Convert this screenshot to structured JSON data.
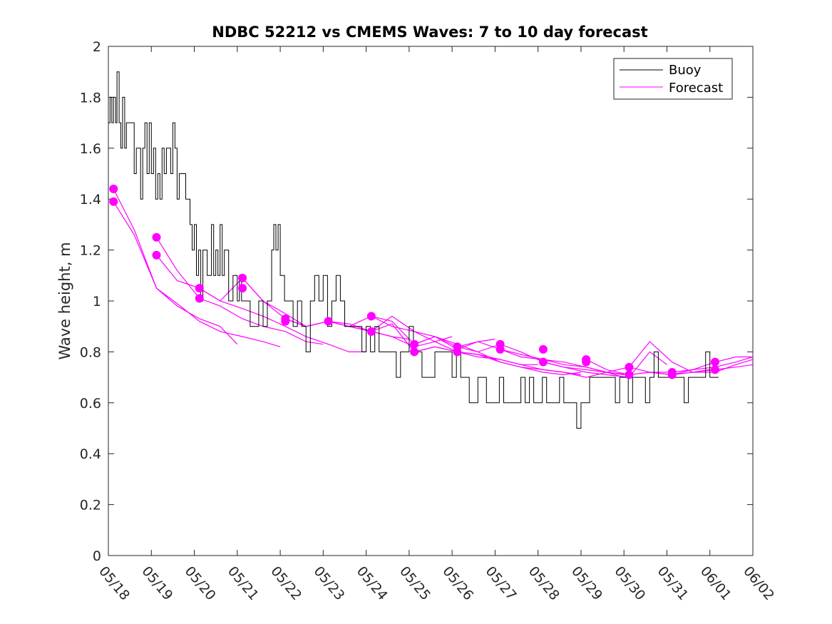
{
  "chart_data": {
    "type": "line",
    "title": "NDBC 52212 vs CMEMS Waves: 7 to 10 day forecast",
    "xlabel": "",
    "ylabel": "Wave height, m",
    "xlim": [
      "05/18",
      "06/02"
    ],
    "ylim": [
      0,
      2
    ],
    "x_tick_labels": [
      "05/18",
      "05/19",
      "05/20",
      "05/21",
      "05/22",
      "05/23",
      "05/24",
      "05/25",
      "05/26",
      "05/27",
      "05/28",
      "05/29",
      "05/30",
      "05/31",
      "06/01",
      "06/02"
    ],
    "y_ticks": [
      0,
      0.2,
      0.4,
      0.6,
      0.8,
      1,
      1.2,
      1.4,
      1.6,
      1.8,
      2
    ],
    "y_tick_labels": [
      "0",
      "0.2",
      "0.4",
      "0.6",
      "0.8",
      "1",
      "1.2",
      "1.4",
      "1.6",
      "1.8",
      "2"
    ],
    "grid": false,
    "legend": {
      "placement": "top-right",
      "entries": [
        "Buoy",
        "Forecast"
      ]
    },
    "series": [
      {
        "name": "Buoy",
        "color": "#000000",
        "x_days": [
          0.0,
          0.04,
          0.08,
          0.12,
          0.17,
          0.2,
          0.25,
          0.29,
          0.33,
          0.38,
          0.42,
          0.5,
          0.6,
          0.65,
          0.75,
          0.8,
          0.85,
          0.9,
          0.95,
          1.0,
          1.05,
          1.1,
          1.15,
          1.2,
          1.25,
          1.3,
          1.35,
          1.45,
          1.5,
          1.55,
          1.6,
          1.65,
          1.7,
          1.8,
          1.9,
          1.95,
          2.0,
          2.05,
          2.1,
          2.15,
          2.2,
          2.3,
          2.4,
          2.45,
          2.5,
          2.55,
          2.6,
          2.65,
          2.7,
          2.8,
          2.9,
          3.0,
          3.05,
          3.1,
          3.15,
          3.2,
          3.3,
          3.4,
          3.5,
          3.6,
          3.7,
          3.8,
          3.85,
          3.9,
          3.95,
          4.0,
          4.05,
          4.1,
          4.2,
          4.3,
          4.4,
          4.5,
          4.6,
          4.7,
          4.8,
          4.9,
          5.0,
          5.1,
          5.2,
          5.3,
          5.4,
          5.5,
          5.6,
          5.7,
          5.8,
          5.9,
          6.0,
          6.1,
          6.2,
          6.3,
          6.4,
          6.5,
          6.6,
          6.7,
          6.8,
          6.9,
          7.0,
          7.1,
          7.2,
          7.3,
          7.4,
          7.5,
          7.6,
          7.7,
          7.8,
          7.9,
          8.0,
          8.1,
          8.2,
          8.3,
          8.4,
          8.5,
          8.6,
          8.7,
          8.8,
          8.9,
          9.0,
          9.1,
          9.2,
          9.3,
          9.4,
          9.5,
          9.6,
          9.7,
          9.8,
          9.9,
          10.0,
          10.1,
          10.2,
          10.3,
          10.4,
          10.5,
          10.6,
          10.7,
          10.8,
          10.9,
          11.0,
          11.1,
          11.2,
          11.3,
          11.4,
          11.5,
          11.6,
          11.7,
          11.8,
          11.9,
          12.0,
          12.1,
          12.2,
          12.3,
          12.4,
          12.5,
          12.6,
          12.7,
          12.8,
          12.9,
          13.0,
          13.1,
          13.2,
          13.3,
          13.4,
          13.5,
          13.6,
          13.7,
          13.8,
          13.9,
          14.0,
          14.1,
          14.2
        ],
        "y": [
          1.7,
          1.8,
          1.7,
          1.8,
          1.7,
          1.9,
          1.7,
          1.6,
          1.8,
          1.6,
          1.7,
          1.7,
          1.5,
          1.6,
          1.4,
          1.6,
          1.7,
          1.5,
          1.7,
          1.5,
          1.6,
          1.4,
          1.5,
          1.4,
          1.6,
          1.5,
          1.6,
          1.5,
          1.7,
          1.6,
          1.4,
          1.5,
          1.5,
          1.4,
          1.3,
          1.2,
          1.3,
          1.1,
          1.2,
          1.0,
          1.2,
          1.1,
          1.3,
          1.1,
          1.2,
          1.1,
          1.3,
          1.1,
          1.2,
          1.0,
          1.1,
          1.0,
          1.1,
          1.0,
          1.0,
          1.0,
          0.9,
          0.9,
          1.0,
          0.9,
          1.0,
          1.2,
          1.3,
          1.2,
          1.3,
          1.1,
          1.1,
          1.0,
          1.0,
          0.9,
          1.0,
          0.9,
          0.8,
          1.0,
          1.1,
          1.0,
          1.1,
          0.9,
          1.0,
          1.1,
          1.0,
          0.9,
          0.9,
          0.9,
          0.9,
          0.8,
          0.9,
          0.8,
          0.9,
          0.8,
          0.8,
          0.8,
          0.8,
          0.7,
          0.8,
          0.8,
          0.9,
          0.8,
          0.8,
          0.7,
          0.7,
          0.7,
          0.8,
          0.8,
          0.8,
          0.8,
          0.7,
          0.8,
          0.7,
          0.7,
          0.6,
          0.6,
          0.7,
          0.7,
          0.6,
          0.6,
          0.6,
          0.7,
          0.6,
          0.6,
          0.6,
          0.6,
          0.7,
          0.6,
          0.7,
          0.6,
          0.6,
          0.7,
          0.6,
          0.6,
          0.6,
          0.7,
          0.6,
          0.6,
          0.6,
          0.5,
          0.6,
          0.6,
          0.7,
          0.7,
          0.7,
          0.7,
          0.7,
          0.7,
          0.6,
          0.7,
          0.7,
          0.6,
          0.7,
          0.7,
          0.7,
          0.6,
          0.7,
          0.8,
          0.7,
          0.7,
          0.7,
          0.7,
          0.7,
          0.7,
          0.6,
          0.7,
          0.7,
          0.7,
          0.7,
          0.8,
          0.7,
          0.7,
          0.7
        ]
      },
      {
        "name": "Forecast",
        "color": "#ff00ff",
        "runs": [
          {
            "x_days": [
              0.12,
              0.6,
              1.12,
              1.6,
              2.12,
              2.6,
              3.0
            ],
            "y": [
              1.44,
              1.28,
              1.05,
              0.98,
              0.93,
              0.9,
              0.83
            ]
          },
          {
            "x_days": [
              0.12,
              0.6,
              1.12,
              1.6,
              2.12,
              2.6,
              3.12,
              3.6,
              4.0
            ],
            "y": [
              1.39,
              1.26,
              1.05,
              0.99,
              0.92,
              0.88,
              0.86,
              0.84,
              0.82
            ]
          },
          {
            "x_days": [
              1.12,
              1.6,
              2.12,
              2.6,
              3.12,
              3.6,
              4.12,
              4.6,
              5.0
            ],
            "y": [
              1.25,
              1.12,
              1.01,
              0.98,
              0.93,
              0.9,
              0.88,
              0.84,
              0.83
            ]
          },
          {
            "x_days": [
              1.12,
              1.6,
              2.12,
              2.6,
              3.12,
              3.6,
              4.12,
              4.6,
              5.12,
              5.6,
              6.0
            ],
            "y": [
              1.18,
              1.08,
              1.05,
              1.0,
              0.97,
              0.94,
              0.9,
              0.86,
              0.83,
              0.8,
              0.8
            ]
          },
          {
            "x_days": [
              2.12,
              2.6,
              3.12,
              3.6,
              4.12,
              4.6,
              5.12,
              5.6,
              6.12,
              6.6,
              7.0
            ],
            "y": [
              1.05,
              1.0,
              1.09,
              1.0,
              0.95,
              0.9,
              0.92,
              0.9,
              0.88,
              0.86,
              0.85
            ]
          },
          {
            "x_days": [
              3.12,
              3.6,
              4.12,
              4.6,
              5.12,
              5.6,
              6.12,
              6.6,
              7.12,
              7.6,
              8.0
            ],
            "y": [
              1.09,
              1.0,
              0.93,
              0.9,
              0.92,
              0.91,
              0.88,
              0.86,
              0.82,
              0.84,
              0.86
            ]
          },
          {
            "x_days": [
              4.12,
              4.6,
              5.12,
              5.6,
              6.12,
              6.6,
              7.12,
              7.6,
              8.12,
              8.6,
              9.0
            ],
            "y": [
              0.93,
              0.9,
              0.92,
              0.9,
              0.94,
              0.9,
              0.88,
              0.86,
              0.82,
              0.84,
              0.85
            ]
          },
          {
            "x_days": [
              5.12,
              5.6,
              6.12,
              6.6,
              7.12,
              7.6,
              8.12,
              8.6,
              9.12,
              9.6,
              10.0
            ],
            "y": [
              0.92,
              0.9,
              0.88,
              0.94,
              0.88,
              0.84,
              0.8,
              0.79,
              0.77,
              0.75,
              0.75
            ]
          },
          {
            "x_days": [
              6.12,
              6.6,
              7.12,
              7.6,
              8.12,
              8.6,
              9.12,
              9.6,
              10.12,
              10.6,
              11.0
            ],
            "y": [
              0.94,
              0.92,
              0.83,
              0.86,
              0.83,
              0.8,
              0.76,
              0.74,
              0.72,
              0.71,
              0.72
            ]
          },
          {
            "x_days": [
              6.12,
              6.6,
              7.12,
              7.6,
              8.12,
              8.6,
              9.12,
              9.6,
              10.12,
              10.6,
              11.0
            ],
            "y": [
              0.88,
              0.91,
              0.8,
              0.82,
              0.8,
              0.78,
              0.77,
              0.75,
              0.73,
              0.72,
              0.71
            ]
          },
          {
            "x_days": [
              7.12,
              7.6,
              8.12,
              8.6,
              9.12,
              9.6,
              10.12,
              10.6,
              11.12,
              11.6,
              12.0
            ],
            "y": [
              0.83,
              0.86,
              0.81,
              0.84,
              0.81,
              0.79,
              0.77,
              0.76,
              0.74,
              0.72,
              0.7
            ]
          },
          {
            "x_days": [
              7.12,
              7.6,
              8.12,
              8.6,
              9.12,
              9.6,
              10.12,
              10.6,
              11.12,
              11.6,
              12.0
            ],
            "y": [
              0.8,
              0.82,
              0.8,
              0.79,
              0.76,
              0.74,
              0.73,
              0.72,
              0.7,
              0.72,
              0.71
            ]
          },
          {
            "x_days": [
              8.12,
              8.6,
              9.12,
              9.6,
              10.12,
              10.6,
              11.12,
              11.6,
              12.12,
              12.6,
              13.0
            ],
            "y": [
              0.82,
              0.8,
              0.83,
              0.8,
              0.76,
              0.74,
              0.72,
              0.71,
              0.7,
              0.8,
              0.75
            ]
          },
          {
            "x_days": [
              9.12,
              9.6,
              10.12,
              10.6,
              11.12,
              11.6,
              12.12,
              12.6,
              13.12,
              13.6,
              14.0
            ],
            "y": [
              0.81,
              0.78,
              0.77,
              0.75,
              0.74,
              0.72,
              0.74,
              0.84,
              0.76,
              0.72,
              0.73
            ]
          },
          {
            "x_days": [
              10.12,
              10.6,
              11.12,
              11.6,
              12.12,
              12.6,
              13.12,
              13.6,
              14.12,
              14.6,
              15.0
            ],
            "y": [
              0.76,
              0.74,
              0.73,
              0.72,
              0.71,
              0.72,
              0.71,
              0.73,
              0.74,
              0.76,
              0.78
            ]
          },
          {
            "x_days": [
              11.12,
              11.6,
              12.12,
              12.6,
              13.12,
              13.6,
              14.12,
              14.6,
              15.0
            ],
            "y": [
              0.77,
              0.73,
              0.71,
              0.72,
              0.71,
              0.72,
              0.72,
              0.75,
              0.77
            ]
          },
          {
            "x_days": [
              12.12,
              12.6,
              13.12,
              13.6,
              14.12,
              14.6,
              15.0
            ],
            "y": [
              0.74,
              0.72,
              0.72,
              0.73,
              0.76,
              0.78,
              0.78
            ]
          },
          {
            "x_days": [
              13.12,
              13.6,
              14.12,
              14.6,
              15.0
            ],
            "y": [
              0.71,
              0.72,
              0.73,
              0.74,
              0.75
            ]
          }
        ],
        "markers": [
          {
            "x_day": 0.12,
            "y": 1.44
          },
          {
            "x_day": 0.12,
            "y": 1.39
          },
          {
            "x_day": 1.12,
            "y": 1.25
          },
          {
            "x_day": 1.12,
            "y": 1.18
          },
          {
            "x_day": 2.12,
            "y": 1.05
          },
          {
            "x_day": 2.12,
            "y": 1.01
          },
          {
            "x_day": 3.12,
            "y": 1.09
          },
          {
            "x_day": 3.12,
            "y": 1.05
          },
          {
            "x_day": 4.12,
            "y": 0.93
          },
          {
            "x_day": 4.12,
            "y": 0.92
          },
          {
            "x_day": 5.12,
            "y": 0.92
          },
          {
            "x_day": 6.12,
            "y": 0.94
          },
          {
            "x_day": 6.12,
            "y": 0.88
          },
          {
            "x_day": 7.12,
            "y": 0.83
          },
          {
            "x_day": 7.12,
            "y": 0.8
          },
          {
            "x_day": 8.12,
            "y": 0.82
          },
          {
            "x_day": 8.12,
            "y": 0.8
          },
          {
            "x_day": 9.12,
            "y": 0.83
          },
          {
            "x_day": 9.12,
            "y": 0.81
          },
          {
            "x_day": 10.12,
            "y": 0.81
          },
          {
            "x_day": 10.12,
            "y": 0.76
          },
          {
            "x_day": 11.12,
            "y": 0.77
          },
          {
            "x_day": 11.12,
            "y": 0.76
          },
          {
            "x_day": 12.12,
            "y": 0.74
          },
          {
            "x_day": 12.12,
            "y": 0.71
          },
          {
            "x_day": 13.12,
            "y": 0.72
          },
          {
            "x_day": 13.12,
            "y": 0.71
          },
          {
            "x_day": 14.12,
            "y": 0.76
          },
          {
            "x_day": 14.12,
            "y": 0.73
          }
        ]
      }
    ]
  }
}
